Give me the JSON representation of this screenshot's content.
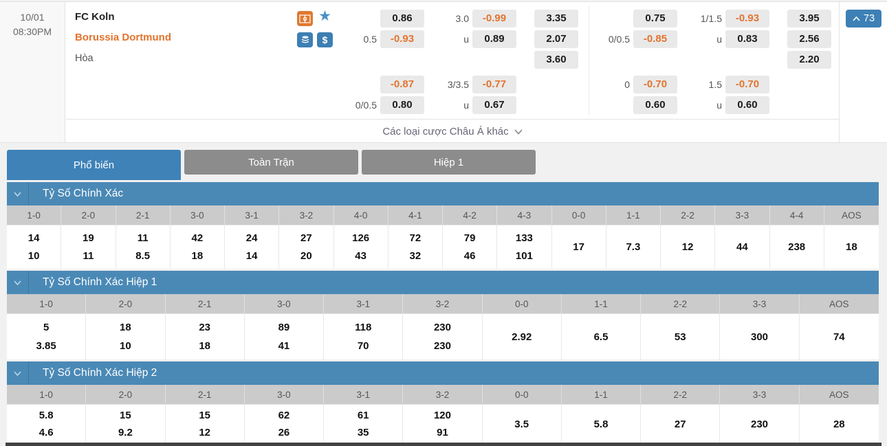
{
  "colors": {
    "accent_blue": "#3e82b8",
    "section_header_blue": "#4a89b6",
    "odds_orange": "#e2742f",
    "away_team_orange": "#e2732d",
    "tab_gray": "#8c8c8c",
    "badge_blue": "#3d80b5"
  },
  "match": {
    "date": "10/01",
    "time": "08:30PM",
    "home_team": "FC Koln",
    "away_team": "Borussia Dortmund",
    "draw_label": "Hòa",
    "bet_count": "73",
    "more_bets_label": "Các loại cược Châu Á khác"
  },
  "odds": {
    "groups": [
      {
        "main": {
          "hdp_top": {
            "label": "",
            "value": "0.86"
          },
          "hdp_bot": {
            "label": "0.5",
            "value": "-0.93"
          },
          "ou_top": {
            "label": "3.0",
            "value": "-0.99"
          },
          "ou_bot": {
            "label": "u",
            "value": "0.89"
          },
          "x12": {
            "home": "3.35",
            "away": "2.07",
            "draw": "3.60"
          }
        },
        "sub": {
          "hdp_top": {
            "label": "",
            "value": "-0.87"
          },
          "hdp_bot": {
            "label": "0/0.5",
            "value": "0.80"
          },
          "ou_top": {
            "label": "3/3.5",
            "value": "-0.77"
          },
          "ou_bot": {
            "label": "u",
            "value": "0.67"
          }
        }
      },
      {
        "main": {
          "hdp_top": {
            "label": "",
            "value": "0.75"
          },
          "hdp_bot": {
            "label": "0/0.5",
            "value": "-0.85"
          },
          "ou_top": {
            "label": "1/1.5",
            "value": "-0.93"
          },
          "ou_bot": {
            "label": "u",
            "value": "0.83"
          },
          "x12": {
            "home": "3.95",
            "away": "2.56",
            "draw": "2.20"
          }
        },
        "sub": {
          "hdp_top": {
            "label": "0",
            "value": "-0.70"
          },
          "hdp_bot": {
            "label": "",
            "value": "0.60"
          },
          "ou_top": {
            "label": "1.5",
            "value": "-0.70"
          },
          "ou_bot": {
            "label": "u",
            "value": "0.60"
          }
        }
      }
    ]
  },
  "tabs": [
    {
      "label": "Phổ biến",
      "active": true
    },
    {
      "label": "Toàn Trận",
      "active": false
    },
    {
      "label": "Hiệp 1",
      "active": false
    }
  ],
  "tables": [
    {
      "title": "Tỷ Số Chính Xác",
      "columns": [
        {
          "score": "1-0",
          "home": "14",
          "away": "10"
        },
        {
          "score": "2-0",
          "home": "19",
          "away": "11"
        },
        {
          "score": "2-1",
          "home": "11",
          "away": "8.5"
        },
        {
          "score": "3-0",
          "home": "42",
          "away": "18"
        },
        {
          "score": "3-1",
          "home": "24",
          "away": "14"
        },
        {
          "score": "3-2",
          "home": "27",
          "away": "20"
        },
        {
          "score": "4-0",
          "home": "126",
          "away": "43"
        },
        {
          "score": "4-1",
          "home": "72",
          "away": "32"
        },
        {
          "score": "4-2",
          "home": "79",
          "away": "46"
        },
        {
          "score": "4-3",
          "home": "133",
          "away": "101"
        },
        {
          "score": "0-0",
          "single": "17"
        },
        {
          "score": "1-1",
          "single": "7.3"
        },
        {
          "score": "2-2",
          "single": "12"
        },
        {
          "score": "3-3",
          "single": "44"
        },
        {
          "score": "4-4",
          "single": "238"
        },
        {
          "score": "AOS",
          "single": "18"
        }
      ]
    },
    {
      "title": "Tỷ Số Chính Xác Hiệp 1",
      "columns": [
        {
          "score": "1-0",
          "home": "5",
          "away": "3.85"
        },
        {
          "score": "2-0",
          "home": "18",
          "away": "10"
        },
        {
          "score": "2-1",
          "home": "23",
          "away": "18"
        },
        {
          "score": "3-0",
          "home": "89",
          "away": "41"
        },
        {
          "score": "3-1",
          "home": "118",
          "away": "70"
        },
        {
          "score": "3-2",
          "home": "230",
          "away": "230"
        },
        {
          "score": "0-0",
          "single": "2.92"
        },
        {
          "score": "1-1",
          "single": "6.5"
        },
        {
          "score": "2-2",
          "single": "53"
        },
        {
          "score": "3-3",
          "single": "300"
        },
        {
          "score": "AOS",
          "single": "74"
        }
      ]
    },
    {
      "title": "Tỷ Số Chính Xác Hiệp 2",
      "columns": [
        {
          "score": "1-0",
          "home": "5.8",
          "away": "4.6"
        },
        {
          "score": "2-0",
          "home": "15",
          "away": "9.2"
        },
        {
          "score": "2-1",
          "home": "15",
          "away": "12"
        },
        {
          "score": "3-0",
          "home": "62",
          "away": "26"
        },
        {
          "score": "3-1",
          "home": "61",
          "away": "35"
        },
        {
          "score": "3-2",
          "home": "120",
          "away": "91"
        },
        {
          "score": "0-0",
          "single": "3.5"
        },
        {
          "score": "1-1",
          "single": "5.8"
        },
        {
          "score": "2-2",
          "single": "27"
        },
        {
          "score": "3-3",
          "single": "230"
        },
        {
          "score": "AOS",
          "single": "28"
        }
      ]
    }
  ]
}
